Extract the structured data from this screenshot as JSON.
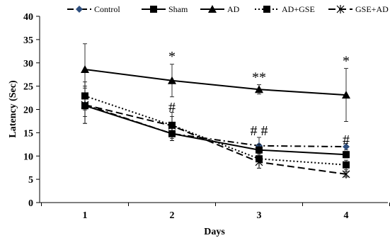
{
  "chart_data": {
    "type": "line",
    "xlabel": "Days",
    "ylabel": "Latency (Sec)",
    "categories": [
      "1",
      "2",
      "3",
      "4"
    ],
    "ylim": [
      0,
      40
    ],
    "yticks": [
      "0",
      "5",
      "10",
      "15",
      "20",
      "25",
      "30",
      "35",
      "40"
    ],
    "grid": false,
    "legend_position": "top",
    "series": [
      {
        "name": "Control",
        "values": [
          21.0,
          14.8,
          12.2,
          12.0
        ],
        "errors": [
          4.0,
          1.5,
          1.8,
          0.7
        ],
        "marker": "diamond",
        "dash": "dashdot",
        "color": "#000000",
        "marker_color": "#2f4f7f"
      },
      {
        "name": "Sham",
        "values": [
          20.8,
          14.8,
          11.3,
          10.3
        ],
        "errors": [
          3.8,
          1.5,
          1.2,
          0.7
        ],
        "marker": "square",
        "dash": "solid",
        "color": "#000000",
        "marker_color": "#000000"
      },
      {
        "name": "AD",
        "values": [
          28.6,
          26.2,
          24.3,
          23.1
        ],
        "errors": [
          5.5,
          3.5,
          1.0,
          5.7
        ],
        "marker": "triangle",
        "dash": "solid",
        "color": "#000000",
        "marker_color": "#000000"
      },
      {
        "name": "AD+GSE",
        "values": [
          22.9,
          16.6,
          9.4,
          8.1
        ],
        "errors": [
          3.0,
          2.8,
          2.0,
          1.0
        ],
        "marker": "square",
        "dash": "dotted",
        "color": "#000000",
        "marker_color": "#000000"
      },
      {
        "name": "GSE+AD",
        "values": [
          21.0,
          16.5,
          8.7,
          6.1
        ],
        "errors": [
          2.5,
          2.0,
          1.3,
          0.6
        ],
        "marker": "asterisk",
        "dash": "dashed",
        "color": "#000000",
        "marker_color": "#000000"
      }
    ],
    "annotations": [
      {
        "text": "*",
        "category": "2",
        "y": 31.5
      },
      {
        "text": "**",
        "category": "3",
        "y": 27.0
      },
      {
        "text": "*",
        "category": "4",
        "y": 30.5
      },
      {
        "text": "#",
        "category": "2",
        "y": 20.5
      },
      {
        "text": "# #",
        "category": "3",
        "y": 15.5
      },
      {
        "text": "#",
        "category": "4",
        "y": 13.5
      }
    ]
  }
}
